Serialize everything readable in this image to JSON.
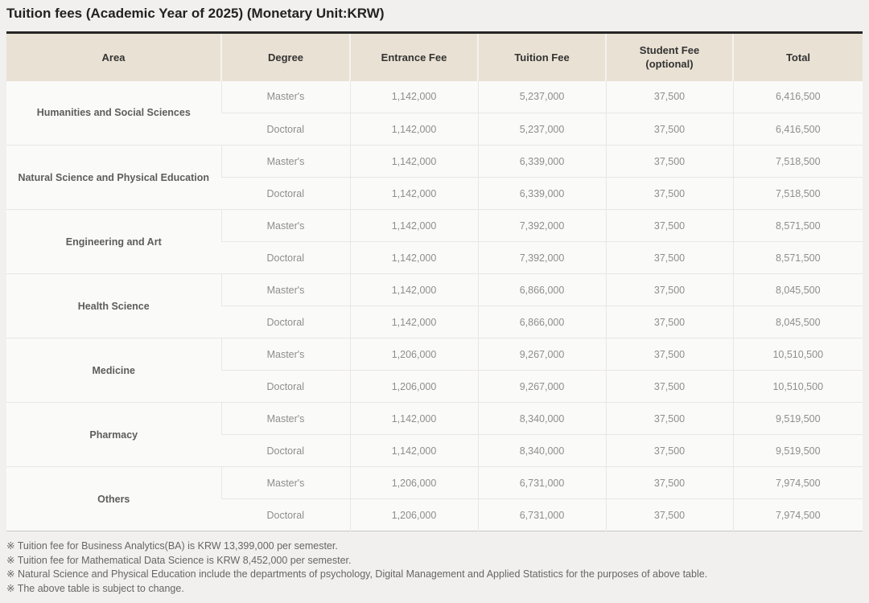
{
  "title": "Tuition fees (Academic Year of 2025) (Monetary Unit:KRW)",
  "colors": {
    "page_background": "#f1f0ee",
    "header_background": "#e9e1d3",
    "table_top_border": "#252525",
    "body_text": "#8e8e8e",
    "area_text": "#5d5d5d",
    "note_text": "#666666"
  },
  "table": {
    "columns": [
      "Area",
      "Degree",
      "Entrance Fee",
      "Tuition Fee",
      "Student Fee\n(optional)",
      "Total"
    ],
    "groups": [
      {
        "area": "Humanities and Social Sciences",
        "rows": [
          {
            "degree": "Master's",
            "entrance_fee": "1,142,000",
            "tuition_fee": "5,237,000",
            "student_fee": "37,500",
            "total": "6,416,500"
          },
          {
            "degree": "Doctoral",
            "entrance_fee": "1,142,000",
            "tuition_fee": "5,237,000",
            "student_fee": "37,500",
            "total": "6,416,500"
          }
        ]
      },
      {
        "area": "Natural Science and Physical Education",
        "rows": [
          {
            "degree": "Master's",
            "entrance_fee": "1,142,000",
            "tuition_fee": "6,339,000",
            "student_fee": "37,500",
            "total": "7,518,500"
          },
          {
            "degree": "Doctoral",
            "entrance_fee": "1,142,000",
            "tuition_fee": "6,339,000",
            "student_fee": "37,500",
            "total": "7,518,500"
          }
        ]
      },
      {
        "area": "Engineering and Art",
        "rows": [
          {
            "degree": "Master's",
            "entrance_fee": "1,142,000",
            "tuition_fee": "7,392,000",
            "student_fee": "37,500",
            "total": "8,571,500"
          },
          {
            "degree": "Doctoral",
            "entrance_fee": "1,142,000",
            "tuition_fee": "7,392,000",
            "student_fee": "37,500",
            "total": "8,571,500"
          }
        ]
      },
      {
        "area": "Health Science",
        "rows": [
          {
            "degree": "Master's",
            "entrance_fee": "1,142,000",
            "tuition_fee": "6,866,000",
            "student_fee": "37,500",
            "total": "8,045,500"
          },
          {
            "degree": "Doctoral",
            "entrance_fee": "1,142,000",
            "tuition_fee": "6,866,000",
            "student_fee": "37,500",
            "total": "8,045,500"
          }
        ]
      },
      {
        "area": "Medicine",
        "rows": [
          {
            "degree": "Master's",
            "entrance_fee": "1,206,000",
            "tuition_fee": "9,267,000",
            "student_fee": "37,500",
            "total": "10,510,500"
          },
          {
            "degree": "Doctoral",
            "entrance_fee": "1,206,000",
            "tuition_fee": "9,267,000",
            "student_fee": "37,500",
            "total": "10,510,500"
          }
        ]
      },
      {
        "area": "Pharmacy",
        "rows": [
          {
            "degree": "Master's",
            "entrance_fee": "1,142,000",
            "tuition_fee": "8,340,000",
            "student_fee": "37,500",
            "total": "9,519,500"
          },
          {
            "degree": "Doctoral",
            "entrance_fee": "1,142,000",
            "tuition_fee": "8,340,000",
            "student_fee": "37,500",
            "total": "9,519,500"
          }
        ]
      },
      {
        "area": "Others",
        "rows": [
          {
            "degree": "Master's",
            "entrance_fee": "1,206,000",
            "tuition_fee": "6,731,000",
            "student_fee": "37,500",
            "total": "7,974,500"
          },
          {
            "degree": "Doctoral",
            "entrance_fee": "1,206,000",
            "tuition_fee": "6,731,000",
            "student_fee": "37,500",
            "total": "7,974,500"
          }
        ]
      }
    ]
  },
  "notes": [
    "※ Tuition fee for Business Analytics(BA) is KRW 13,399,000 per semester.",
    "※ Tuition fee for Mathematical Data Science is KRW 8,452,000 per semester.",
    "※ Natural Science and Physical Education include the departments of psychology, Digital Management and Applied Statistics for the purposes of above table.",
    "※ The above table is subject to change."
  ]
}
